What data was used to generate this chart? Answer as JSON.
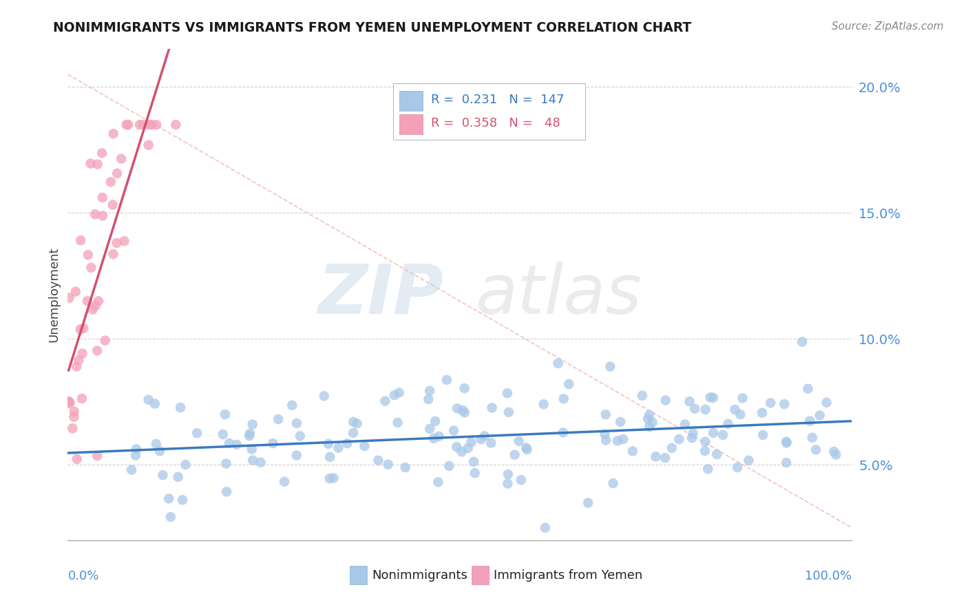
{
  "title": "NONIMMIGRANTS VS IMMIGRANTS FROM YEMEN UNEMPLOYMENT CORRELATION CHART",
  "source": "Source: ZipAtlas.com",
  "ylabel": "Unemployment",
  "watermark_zip": "ZIP",
  "watermark_atlas": "atlas",
  "blue_color": "#a8c8e8",
  "pink_color": "#f4a0b8",
  "blue_line_color": "#3a7abf",
  "pink_line_color": "#d45070",
  "diag_color": "#f0b0b8",
  "background_color": "#ffffff",
  "grid_color": "#cccccc",
  "yticks": [
    0.05,
    0.1,
    0.15,
    0.2
  ],
  "ytick_labels": [
    "5.0%",
    "10.0%",
    "15.0%",
    "20.0%"
  ],
  "xlim": [
    0.0,
    1.0
  ],
  "ylim": [
    0.02,
    0.215
  ],
  "blue_R": 0.231,
  "blue_N": 147,
  "pink_R": 0.358,
  "pink_N": 48,
  "legend_R_blue": "R =  0.231",
  "legend_N_blue": "N =  147",
  "legend_R_pink": "R =  0.358",
  "legend_N_pink": "N =   48"
}
